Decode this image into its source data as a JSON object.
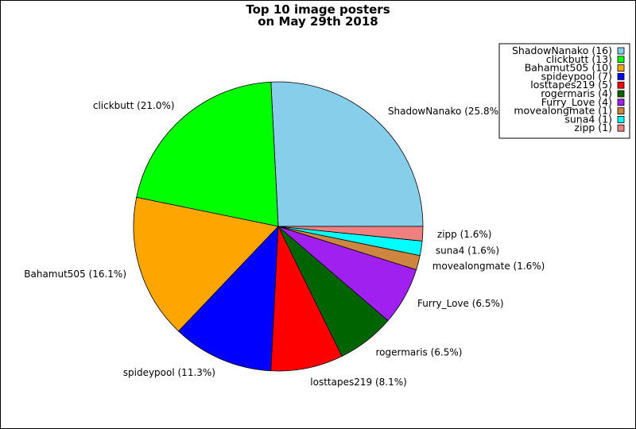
{
  "chart_data": {
    "type": "pie",
    "title_line1": "Top 10 image posters",
    "title_line2": "on May 29th 2018",
    "legend_placement": "top-right",
    "slices": [
      {
        "name": "ShadowNanako",
        "count": 16,
        "percent": 25.8,
        "color": "#87ceeb",
        "label": "ShadowNanako (25.8%)",
        "legend": "ShadowNanako (16)"
      },
      {
        "name": "clickbutt",
        "count": 13,
        "percent": 21.0,
        "color": "#00ff00",
        "label": "clickbutt (21.0%)",
        "legend": "clickbutt (13)"
      },
      {
        "name": "Bahamut505",
        "count": 10,
        "percent": 16.1,
        "color": "#ffa500",
        "label": "Bahamut505 (16.1%)",
        "legend": "Bahamut505 (10)"
      },
      {
        "name": "spideypool",
        "count": 7,
        "percent": 11.3,
        "color": "#0000ff",
        "label": "spideypool (11.3%)",
        "legend": "spideypool (7)"
      },
      {
        "name": "losttapes219",
        "count": 5,
        "percent": 8.1,
        "color": "#ff0000",
        "label": "losttapes219 (8.1%)",
        "legend": "losttapes219 (5)"
      },
      {
        "name": "rogermaris",
        "count": 4,
        "percent": 6.5,
        "color": "#006400",
        "label": "rogermaris (6.5%)",
        "legend": "rogermaris (4)"
      },
      {
        "name": "Furry_Love",
        "count": 4,
        "percent": 6.5,
        "color": "#a020f0",
        "label": "Furry_Love (6.5%)",
        "legend": "Furry_Love (4)"
      },
      {
        "name": "movealongmate",
        "count": 1,
        "percent": 1.6,
        "color": "#cd853f",
        "label": "movealongmate (1.6%)",
        "legend": "movealongmate (1)"
      },
      {
        "name": "suna4",
        "count": 1,
        "percent": 1.6,
        "color": "#00ffff",
        "label": "suna4 (1.6%)",
        "legend": "suna4 (1)"
      },
      {
        "name": "zipp",
        "count": 1,
        "percent": 1.6,
        "color": "#f08080",
        "label": "zipp (1.6%)",
        "legend": "zipp (1)"
      }
    ]
  }
}
